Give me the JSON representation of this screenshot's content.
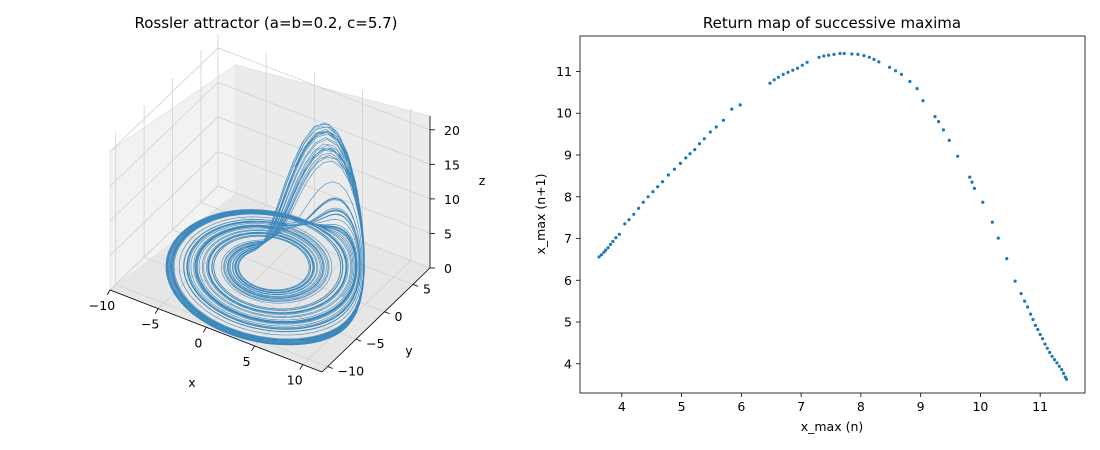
{
  "figure": {
    "background": "#ffffff",
    "series_color": "#1f77b4"
  },
  "chart_data": [
    {
      "type": "line3d",
      "title": "Rossler attractor (a=b=0.2, c=5.7)",
      "xlabel": "x",
      "ylabel": "y",
      "zlabel": "z",
      "xlim": [
        -10,
        12
      ],
      "ylim": [
        -11,
        8
      ],
      "zlim": [
        0,
        22
      ],
      "xticks": [
        -10,
        -5,
        0,
        5,
        10
      ],
      "yticks": [
        -10,
        -5,
        0,
        5
      ],
      "zticks": [
        0,
        5,
        10,
        15,
        20
      ],
      "parameters": {
        "a": 0.2,
        "b": 0.2,
        "c": 5.7
      },
      "grid": true
    },
    {
      "type": "scatter",
      "title": "Return map of successive maxima",
      "xlabel": "x_max (n)",
      "ylabel": "x_max (n+1)",
      "xlim": [
        3.3,
        11.75
      ],
      "ylim": [
        3.3,
        11.85
      ],
      "xticks": [
        4,
        5,
        6,
        7,
        8,
        9,
        10,
        11
      ],
      "yticks": [
        4,
        5,
        6,
        7,
        8,
        9,
        10,
        11
      ],
      "grid": false,
      "points": [
        [
          3.62,
          6.56
        ],
        [
          3.66,
          6.61
        ],
        [
          3.7,
          6.67
        ],
        [
          3.73,
          6.72
        ],
        [
          3.77,
          6.78
        ],
        [
          3.81,
          6.86
        ],
        [
          3.85,
          6.93
        ],
        [
          3.9,
          7.02
        ],
        [
          3.96,
          7.1
        ],
        [
          4.05,
          7.35
        ],
        [
          4.12,
          7.45
        ],
        [
          4.2,
          7.58
        ],
        [
          4.28,
          7.72
        ],
        [
          4.36,
          7.87
        ],
        [
          4.44,
          8.0
        ],
        [
          4.52,
          8.12
        ],
        [
          4.6,
          8.24
        ],
        [
          4.68,
          8.36
        ],
        [
          4.78,
          8.52
        ],
        [
          4.88,
          8.66
        ],
        [
          4.98,
          8.8
        ],
        [
          5.07,
          8.93
        ],
        [
          5.14,
          9.03
        ],
        [
          5.22,
          9.13
        ],
        [
          5.3,
          9.27
        ],
        [
          5.38,
          9.39
        ],
        [
          5.48,
          9.55
        ],
        [
          5.58,
          9.67
        ],
        [
          5.7,
          9.83
        ],
        [
          5.84,
          10.1
        ],
        [
          5.98,
          10.2
        ],
        [
          6.48,
          10.72
        ],
        [
          6.55,
          10.8
        ],
        [
          6.62,
          10.86
        ],
        [
          6.7,
          10.93
        ],
        [
          6.78,
          10.98
        ],
        [
          6.86,
          11.03
        ],
        [
          6.94,
          11.08
        ],
        [
          7.02,
          11.15
        ],
        [
          7.1,
          11.22
        ],
        [
          7.3,
          11.34
        ],
        [
          7.38,
          11.37
        ],
        [
          7.46,
          11.39
        ],
        [
          7.55,
          11.41
        ],
        [
          7.65,
          11.43
        ],
        [
          7.72,
          11.43
        ],
        [
          7.85,
          11.42
        ],
        [
          7.95,
          11.41
        ],
        [
          8.05,
          11.38
        ],
        [
          8.14,
          11.34
        ],
        [
          8.22,
          11.29
        ],
        [
          8.3,
          11.23
        ],
        [
          8.48,
          11.1
        ],
        [
          8.58,
          11.02
        ],
        [
          8.68,
          10.93
        ],
        [
          8.82,
          10.76
        ],
        [
          8.94,
          10.59
        ],
        [
          9.04,
          10.3
        ],
        [
          9.24,
          9.92
        ],
        [
          9.3,
          9.8
        ],
        [
          9.38,
          9.6
        ],
        [
          9.48,
          9.35
        ],
        [
          9.62,
          8.97
        ],
        [
          9.82,
          8.47
        ],
        [
          9.86,
          8.35
        ],
        [
          9.9,
          8.2
        ],
        [
          10.04,
          7.87
        ],
        [
          10.2,
          7.39
        ],
        [
          10.3,
          7.01
        ],
        [
          10.44,
          6.52
        ],
        [
          10.58,
          5.98
        ],
        [
          10.68,
          5.68
        ],
        [
          10.74,
          5.5
        ],
        [
          10.79,
          5.36
        ],
        [
          10.84,
          5.19
        ],
        [
          10.88,
          5.06
        ],
        [
          10.92,
          4.92
        ],
        [
          10.96,
          4.82
        ],
        [
          11.0,
          4.7
        ],
        [
          11.04,
          4.6
        ],
        [
          11.08,
          4.47
        ],
        [
          11.12,
          4.37
        ],
        [
          11.16,
          4.27
        ],
        [
          11.2,
          4.18
        ],
        [
          11.24,
          4.1
        ],
        [
          11.28,
          4.02
        ],
        [
          11.32,
          3.94
        ],
        [
          11.36,
          3.86
        ],
        [
          11.39,
          3.77
        ],
        [
          11.42,
          3.68
        ],
        [
          11.44,
          3.63
        ]
      ]
    }
  ]
}
